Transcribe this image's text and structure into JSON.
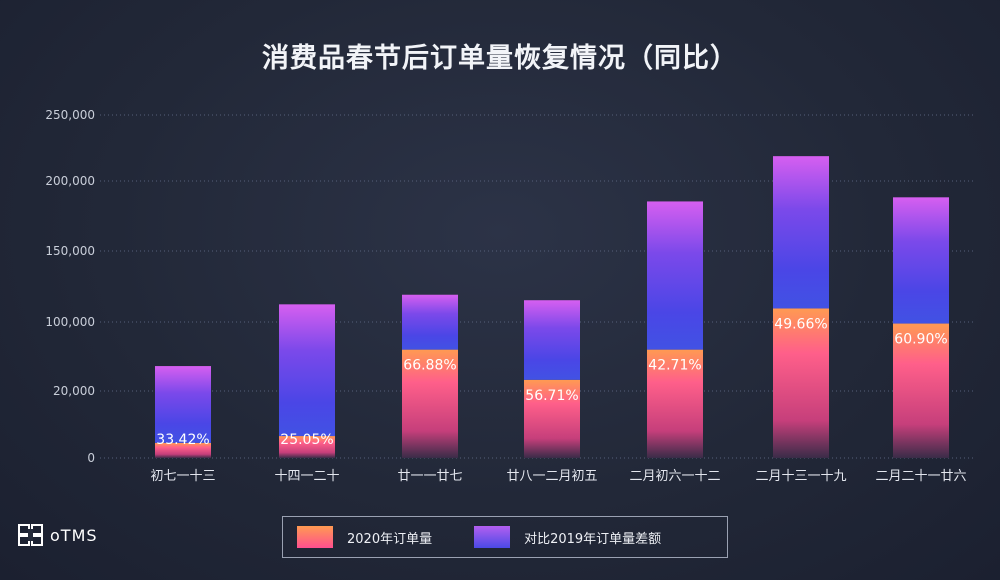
{
  "logo_text": "oTMS",
  "chart_data": {
    "type": "bar",
    "stacked": true,
    "title": "消费品春节后订单量恢复情况（同比）",
    "categories": [
      "初七一十三",
      "十四一二十",
      "廿一一廿七",
      "廿八一二月初五",
      "二月初六一十二",
      "二月十三一十九",
      "二月二十一廿六"
    ],
    "y_tick_labels": [
      "0",
      "20,000",
      "100,000",
      "150,000",
      "200,000",
      "250,000"
    ],
    "ylim": [
      0,
      250000
    ],
    "series": [
      {
        "name": "2020年订单量",
        "values": [
          11000,
          16000,
          79000,
          57000,
          79000,
          109000,
          98000
        ],
        "data_labels": [
          "33.42%",
          "25.05%",
          "66.88%",
          "56.71%",
          "42.71%",
          "49.66%",
          "60.90%"
        ]
      },
      {
        "name": "对比2019年订单量差额",
        "values": [
          56000,
          96000,
          40000,
          58000,
          108000,
          111000,
          92000
        ]
      }
    ],
    "legend_position": "bottom",
    "grid": true
  }
}
